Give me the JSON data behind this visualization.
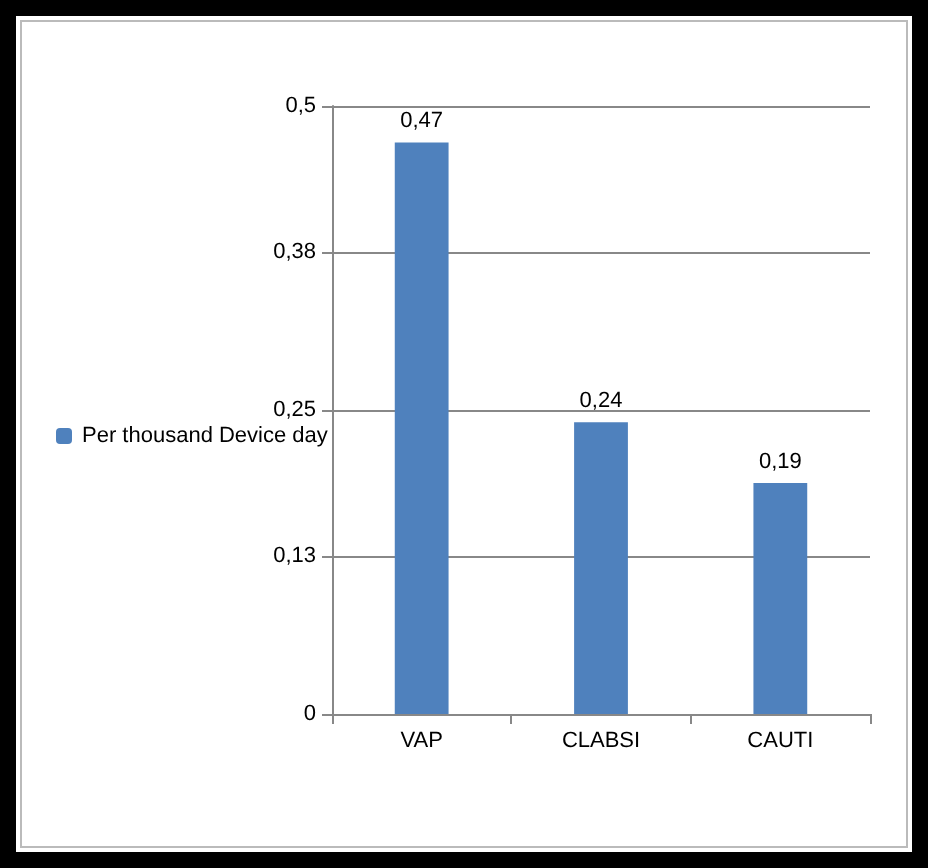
{
  "chart_data": {
    "type": "bar",
    "categories": [
      "VAP",
      "CLABSI",
      "CAUTI"
    ],
    "series": [
      {
        "name": "Per thousand Device day",
        "color": "#4f81bd",
        "values": [
          0.47,
          0.24,
          0.19
        ],
        "value_labels": [
          "0,47",
          "0,24",
          "0,19"
        ]
      }
    ],
    "ylim": [
      0,
      0.5
    ],
    "yticks": [
      {
        "value": 0,
        "label": "0"
      },
      {
        "value": 0.13,
        "label": "0,13"
      },
      {
        "value": 0.25,
        "label": "0,25"
      },
      {
        "value": 0.38,
        "label": "0,38"
      },
      {
        "value": 0.5,
        "label": "0,5"
      }
    ],
    "grid": "y",
    "legend": "left"
  }
}
